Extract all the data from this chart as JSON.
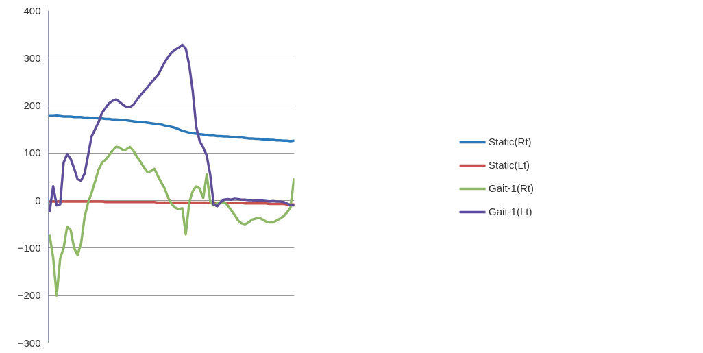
{
  "chart_data": {
    "type": "line",
    "categories": [
      null,
      null,
      null,
      null,
      null,
      null,
      null,
      null,
      null,
      null,
      null,
      null,
      null,
      null,
      null,
      null,
      null,
      null,
      null,
      null,
      null,
      null,
      null,
      null,
      null,
      null,
      null,
      null,
      null,
      null,
      null,
      null,
      null,
      null,
      null,
      null,
      null,
      null,
      null,
      null,
      null,
      null,
      null,
      null,
      null,
      null,
      null,
      null,
      null,
      null,
      null,
      null,
      null,
      null,
      null,
      null,
      null,
      null,
      null,
      null,
      null,
      null,
      null,
      null,
      null,
      null,
      null,
      null,
      null,
      null,
      null
    ],
    "series": [
      {
        "name": "Static(Rt)",
        "color": "#2a78b8",
        "values": [
          178,
          178,
          179,
          178,
          177,
          177,
          177,
          176,
          176,
          176,
          175,
          175,
          174,
          174,
          173,
          173,
          172,
          172,
          171,
          171,
          170,
          170,
          169,
          168,
          167,
          166,
          166,
          165,
          164,
          163,
          162,
          161,
          160,
          158,
          157,
          155,
          153,
          150,
          147,
          145,
          143,
          142,
          141,
          140,
          139,
          138,
          137,
          137,
          136,
          136,
          135,
          135,
          134,
          134,
          133,
          133,
          132,
          131,
          131,
          130,
          130,
          129,
          129,
          128,
          128,
          127,
          127,
          126,
          126,
          125,
          126
        ]
      },
      {
        "name": "Static(Lt)",
        "color": "#c8504d",
        "values": [
          -2,
          -2,
          -2,
          -2,
          -2,
          -2,
          -2,
          -2,
          -2,
          -2,
          -2,
          -2,
          -2,
          -2,
          -2,
          -2,
          -3,
          -3,
          -3,
          -3,
          -3,
          -3,
          -3,
          -3,
          -3,
          -3,
          -3,
          -3,
          -3,
          -3,
          -3,
          -4,
          -4,
          -4,
          -4,
          -4,
          -4,
          -4,
          -4,
          -4,
          -4,
          -4,
          -4,
          -4,
          -4,
          -4,
          -5,
          -5,
          -5,
          -5,
          -5,
          -5,
          -5,
          -5,
          -5,
          -5,
          -6,
          -6,
          -6,
          -6,
          -6,
          -6,
          -6,
          -7,
          -7,
          -7,
          -7,
          -7,
          -8,
          -8,
          -8
        ]
      },
      {
        "name": "Gait-1(Rt)",
        "color": "#8fb866",
        "values": [
          -74,
          -120,
          -200,
          -122,
          -100,
          -55,
          -62,
          -100,
          -115,
          -90,
          -35,
          -5,
          16,
          40,
          65,
          80,
          86,
          95,
          105,
          113,
          112,
          106,
          108,
          113,
          105,
          92,
          82,
          70,
          60,
          62,
          67,
          52,
          38,
          25,
          5,
          -8,
          -15,
          -18,
          -16,
          -71,
          -4,
          20,
          30,
          25,
          5,
          55,
          -2,
          -10,
          -5,
          -5,
          -3,
          -10,
          -20,
          -30,
          -42,
          -48,
          -50,
          -46,
          -40,
          -38,
          -36,
          -40,
          -44,
          -46,
          -46,
          -42,
          -38,
          -33,
          -25,
          -15,
          45
        ]
      },
      {
        "name": "Gait-1(Lt)",
        "color": "#5f4f9a",
        "values": [
          -22,
          30,
          -10,
          -8,
          80,
          98,
          88,
          68,
          45,
          42,
          57,
          95,
          135,
          150,
          165,
          185,
          195,
          205,
          210,
          213,
          208,
          202,
          197,
          197,
          202,
          212,
          222,
          230,
          238,
          248,
          256,
          264,
          278,
          292,
          303,
          312,
          318,
          322,
          328,
          320,
          285,
          230,
          155,
          125,
          112,
          95,
          55,
          -8,
          -12,
          -3,
          2,
          3,
          2,
          4,
          3,
          2,
          2,
          1,
          1,
          0,
          0,
          0,
          -1,
          -2,
          -1,
          -2,
          -2,
          -3,
          -6,
          -10,
          -10
        ]
      }
    ],
    "ylim": [
      -300,
      400
    ],
    "yticks": [
      -300,
      -200,
      -100,
      0,
      100,
      200,
      300,
      400
    ],
    "grid": "y",
    "legend": "right",
    "tick_labels": "y",
    "line_style": "solid",
    "marker": "none"
  }
}
